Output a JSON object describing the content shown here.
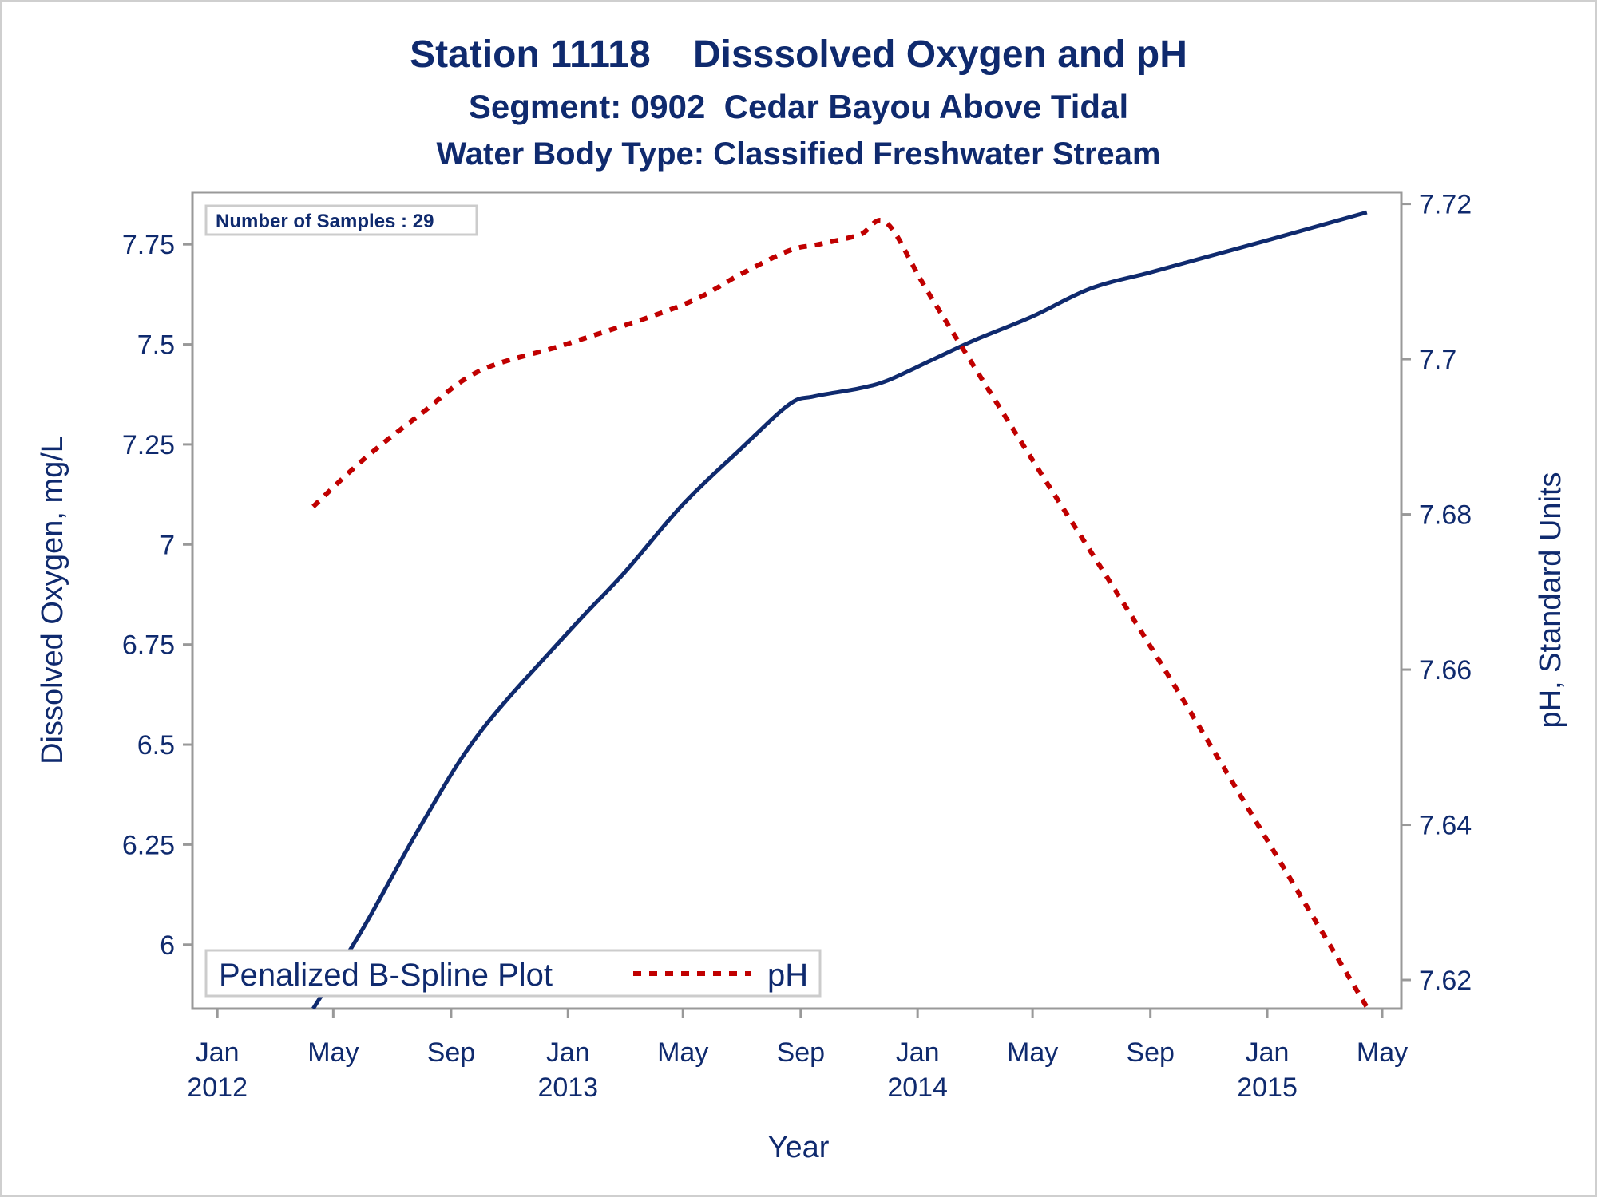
{
  "chart_data": {
    "type": "line",
    "title": "Station 11118    Disssolved Oxygen and pH",
    "subtitle": "Segment: 0902  Cedar Bayou Above Tidal",
    "subtitle2": "Water Body Type: Classified Freshwater Stream",
    "xlabel": "Year",
    "ylabel_left": "Dissolved Oxygen, mg/L",
    "ylabel_right": "pH, Standard Units",
    "inset_label": "Number of Samples : 29",
    "legend": {
      "placement": "bottom-left",
      "title": "Penalized B-Spline Plot",
      "entries": [
        "pH"
      ]
    },
    "x_ticks": [
      {
        "date": "2012-01-01",
        "line1": "Jan",
        "line2": "2012"
      },
      {
        "date": "2012-05-01",
        "line1": "May",
        "line2": ""
      },
      {
        "date": "2012-09-01",
        "line1": "Sep",
        "line2": ""
      },
      {
        "date": "2013-01-01",
        "line1": "Jan",
        "line2": "2013"
      },
      {
        "date": "2013-05-01",
        "line1": "May",
        "line2": ""
      },
      {
        "date": "2013-09-01",
        "line1": "Sep",
        "line2": ""
      },
      {
        "date": "2014-01-01",
        "line1": "Jan",
        "line2": "2014"
      },
      {
        "date": "2014-05-01",
        "line1": "May",
        "line2": ""
      },
      {
        "date": "2014-09-01",
        "line1": "Sep",
        "line2": ""
      },
      {
        "date": "2015-01-01",
        "line1": "Jan",
        "line2": "2015"
      },
      {
        "date": "2015-05-01",
        "line1": "May",
        "line2": ""
      }
    ],
    "xlim": [
      "2011-12-06",
      "2015-05-21"
    ],
    "ylim_left": [
      5.84,
      7.88
    ],
    "ylim_right": [
      7.6163,
      7.7215
    ],
    "y_ticks_left": [
      "6",
      "6.25",
      "6.5",
      "6.75",
      "7",
      "7.25",
      "7.5",
      "7.75"
    ],
    "y_ticks_right": [
      "7.62",
      "7.64",
      "7.66",
      "7.68",
      "7.7",
      "7.72"
    ],
    "series": [
      {
        "axis": "left",
        "color": "#0f2a6e",
        "style": "solid",
        "points": [
          [
            "2012-04-10",
            5.84
          ],
          [
            "2012-06-01",
            6.04
          ],
          [
            "2012-08-01",
            6.3
          ],
          [
            "2012-10-01",
            6.53
          ],
          [
            "2013-01-01",
            6.78
          ],
          [
            "2013-03-01",
            6.93
          ],
          [
            "2013-05-01",
            7.1
          ],
          [
            "2013-07-01",
            7.24
          ],
          [
            "2013-08-20",
            7.35
          ],
          [
            "2013-09-15",
            7.37
          ],
          [
            "2013-11-01",
            7.39
          ],
          [
            "2013-12-01",
            7.41
          ],
          [
            "2014-01-15",
            7.46
          ],
          [
            "2014-03-01",
            7.51
          ],
          [
            "2014-05-01",
            7.57
          ],
          [
            "2014-07-01",
            7.64
          ],
          [
            "2014-09-01",
            7.68
          ],
          [
            "2014-11-01",
            7.72
          ],
          [
            "2015-01-01",
            7.76
          ],
          [
            "2015-04-15",
            7.83
          ]
        ]
      },
      {
        "name": "pH",
        "axis": "right",
        "color": "#c00000",
        "style": "dashed",
        "points": [
          [
            "2012-04-10",
            7.681
          ],
          [
            "2012-06-01",
            7.687
          ],
          [
            "2012-08-01",
            7.693
          ],
          [
            "2012-10-01",
            7.6985
          ],
          [
            "2013-01-01",
            7.702
          ],
          [
            "2013-05-01",
            7.707
          ],
          [
            "2013-07-01",
            7.711
          ],
          [
            "2013-08-20",
            7.714
          ],
          [
            "2013-09-20",
            7.7148
          ],
          [
            "2013-11-01",
            7.716
          ],
          [
            "2013-11-30",
            7.7175
          ],
          [
            "2014-01-15",
            7.708
          ],
          [
            "2014-05-01",
            7.687
          ],
          [
            "2014-09-01",
            7.663
          ],
          [
            "2015-01-01",
            7.638
          ],
          [
            "2015-04-15",
            7.6165
          ]
        ]
      }
    ]
  },
  "colors": {
    "text": "#0f2a6e",
    "frame": "#999999",
    "do_line": "#0f2a6e",
    "ph_line": "#c00000"
  }
}
